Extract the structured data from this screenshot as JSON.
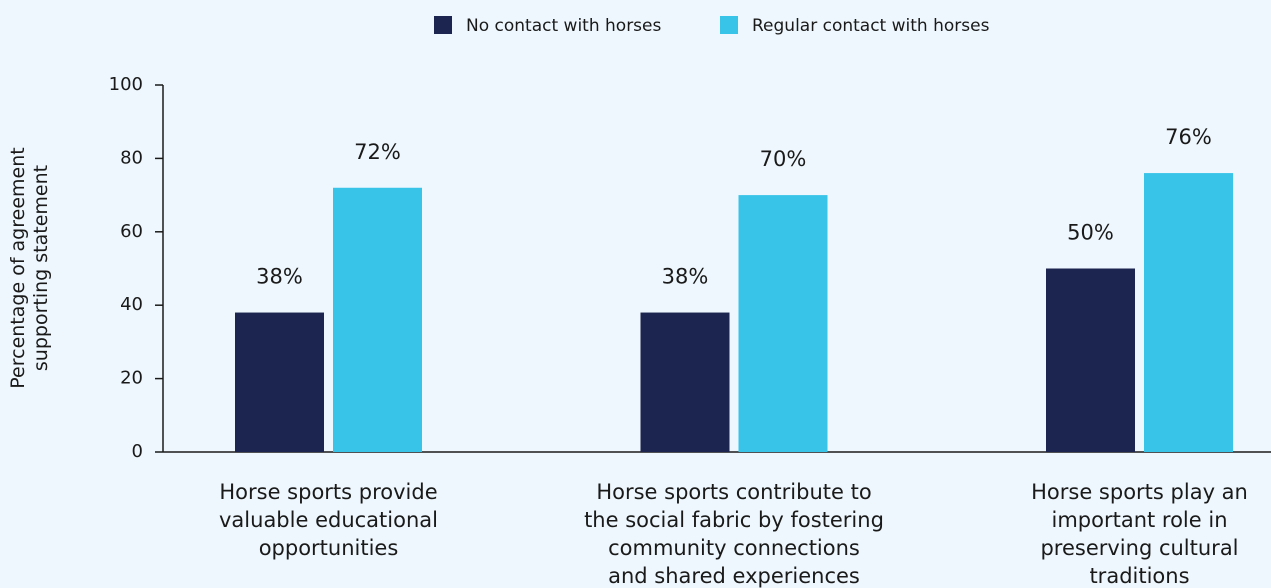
{
  "chart_data": {
    "type": "bar",
    "y_label": "Percentage of agreement\nsupporting statement",
    "categories": [
      "Horse sports provide\nvaluable educational\nopportunities",
      "Horse sports contribute to\nthe social fabric by fostering\ncommunity connections\nand shared experiences",
      "Horse sports play an\nimportant role in\npreserving cultural\ntraditions"
    ],
    "series": [
      {
        "name": "No contact with horses",
        "color": "#1c2550",
        "values": [
          38,
          38,
          50
        ],
        "value_labels": [
          "38%",
          "38%",
          "50%"
        ]
      },
      {
        "name": "Regular contact with horses",
        "color": "#38c4e9",
        "values": [
          72,
          70,
          76
        ],
        "value_labels": [
          "72%",
          "70%",
          "76%"
        ]
      }
    ],
    "ylim": [
      0,
      100
    ],
    "yticks": [
      0,
      20,
      40,
      60,
      80,
      100
    ],
    "legend": "top"
  }
}
